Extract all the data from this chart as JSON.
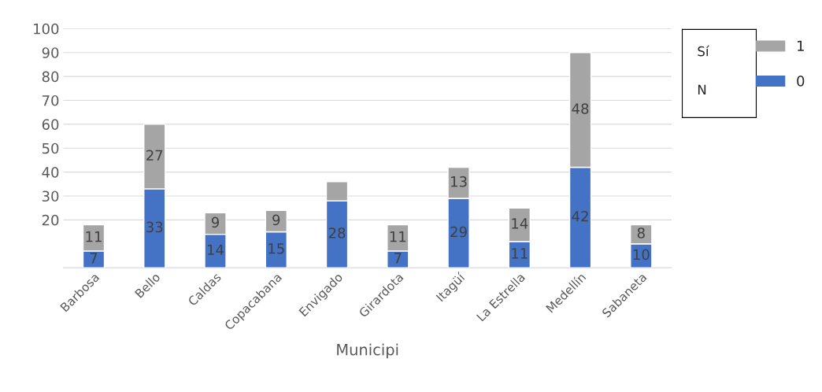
{
  "chart_data": {
    "type": "bar",
    "stacked": true,
    "xlabel": "Municipi",
    "categories": [
      "Barbosa",
      "Bello",
      "Caldas",
      "Copacabana",
      "Envigado",
      "Girardota",
      "Itagüí",
      "La Estrella",
      "Medellín",
      "Sabaneta"
    ],
    "series": [
      {
        "name": "0",
        "color": "#4472c4",
        "values": [
          7,
          33,
          14,
          15,
          28,
          7,
          29,
          11,
          42,
          10
        ],
        "value_labels": [
          "7",
          "33",
          "14",
          "15",
          "28",
          "7",
          "29",
          "11",
          "42",
          "10"
        ]
      },
      {
        "name": "1",
        "color": "#a5a5a5",
        "values": [
          11,
          27,
          9,
          9,
          8,
          11,
          13,
          14,
          48,
          8
        ],
        "value_labels": [
          "11",
          "27",
          "9",
          "9",
          null,
          "11",
          "13",
          "14",
          "48",
          "8"
        ]
      }
    ],
    "ylim": [
      0,
      100
    ],
    "yticks": [
      20,
      30,
      40,
      50,
      60,
      70,
      80,
      90,
      100
    ],
    "grid": "y",
    "legend": "top right",
    "annotations": [
      "Sí",
      "N"
    ]
  }
}
